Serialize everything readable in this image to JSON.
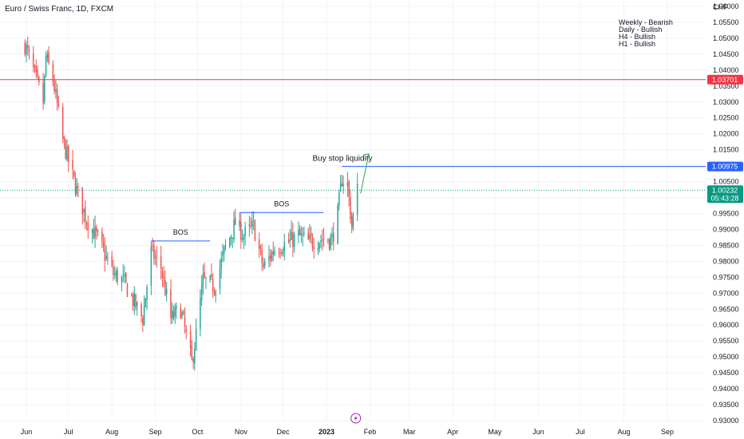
{
  "header": {
    "title": "Euro / Swiss Franc, 1D, FXCM",
    "currency": "CHF"
  },
  "notes": [
    "Weekly - Bearish",
    "Daily - Bullish",
    "H4 - Bullish",
    "H1 - Bullish"
  ],
  "colors": {
    "up": "#26a69a",
    "down": "#ef5350",
    "red_level": "#f23645",
    "blue_level": "#2962ff",
    "current": "#089981",
    "arrow": "#2fa84f",
    "grid": "#f0f3fa",
    "text": "#131722"
  },
  "chart_data": {
    "type": "candlestick",
    "symbol": "Euro / Swiss Franc",
    "timeframe": "1D",
    "exchange": "FXCM",
    "ylim": [
      0.93,
      1.06
    ],
    "y_ticks": [
      "1.06000",
      "1.05500",
      "1.05000",
      "1.04500",
      "1.04000",
      "1.03500",
      "1.03000",
      "1.02500",
      "1.02000",
      "1.01500",
      "1.01000",
      "1.00500",
      "1.00000",
      "0.99500",
      "0.99000",
      "0.98500",
      "0.98000",
      "0.97500",
      "0.97000",
      "0.96500",
      "0.96000",
      "0.95500",
      "0.95000",
      "0.94500",
      "0.94000",
      "0.93500",
      "0.93000"
    ],
    "x_ticks": [
      "Jun",
      "Jul",
      "Aug",
      "Sep",
      "Oct",
      "Nov",
      "Dec",
      "2023",
      "Feb",
      "Mar",
      "Apr",
      "May",
      "Jun",
      "Jul",
      "Aug",
      "Sep"
    ],
    "levels": [
      {
        "price": 1.03701,
        "label": "1.03701",
        "color": "red"
      },
      {
        "price": 1.00975,
        "label": "1.00975",
        "color": "blue"
      }
    ],
    "current_price": {
      "price": 1.00232,
      "label": "1.00232",
      "countdown": "05:43:28"
    },
    "bos_lines": [
      {
        "label": "BOS",
        "price": 0.9864,
        "from": "2022-08-29",
        "to": "2022-10-10"
      },
      {
        "label": "BOS",
        "price": 0.9953,
        "from": "2022-10-31",
        "to": "2022-12-30"
      }
    ],
    "annotations": [
      {
        "text": "Buy stop liquidity"
      }
    ],
    "anchors": [
      {
        "date": "2022-05-31",
        "price": 1.048
      },
      {
        "date": "2022-06-08",
        "price": 1.037
      },
      {
        "date": "2022-06-13",
        "price": 1.03
      },
      {
        "date": "2022-06-15",
        "price": 1.044
      },
      {
        "date": "2022-06-20",
        "price": 1.037
      },
      {
        "date": "2022-06-27",
        "price": 1.018
      },
      {
        "date": "2022-07-05",
        "price": 1.005
      },
      {
        "date": "2022-07-14",
        "price": 0.993
      },
      {
        "date": "2022-07-22",
        "price": 0.987
      },
      {
        "date": "2022-08-02",
        "price": 0.976
      },
      {
        "date": "2022-08-09",
        "price": 0.974
      },
      {
        "date": "2022-08-18",
        "price": 0.966
      },
      {
        "date": "2022-08-23",
        "price": 0.962
      },
      {
        "date": "2022-08-29",
        "price": 0.983
      },
      {
        "date": "2022-09-05",
        "price": 0.978
      },
      {
        "date": "2022-09-12",
        "price": 0.962
      },
      {
        "date": "2022-09-19",
        "price": 0.965
      },
      {
        "date": "2022-09-27",
        "price": 0.948
      },
      {
        "date": "2022-09-30",
        "price": 0.957
      },
      {
        "date": "2022-10-05",
        "price": 0.974
      },
      {
        "date": "2022-10-13",
        "price": 0.972
      },
      {
        "date": "2022-10-20",
        "price": 0.983
      },
      {
        "date": "2022-10-28",
        "price": 0.992
      },
      {
        "date": "2022-11-03",
        "price": 0.988
      },
      {
        "date": "2022-11-10",
        "price": 0.991
      },
      {
        "date": "2022-11-17",
        "price": 0.978
      },
      {
        "date": "2022-11-25",
        "price": 0.984
      },
      {
        "date": "2022-12-05",
        "price": 0.986
      },
      {
        "date": "2022-12-12",
        "price": 0.988
      },
      {
        "date": "2022-12-19",
        "price": 0.986
      },
      {
        "date": "2022-12-28",
        "price": 0.987
      },
      {
        "date": "2023-01-05",
        "price": 0.987
      },
      {
        "date": "2023-01-09",
        "price": 0.995
      },
      {
        "date": "2023-01-12",
        "price": 1.006
      },
      {
        "date": "2023-01-16",
        "price": 1.004
      },
      {
        "date": "2023-01-19",
        "price": 0.991
      },
      {
        "date": "2023-01-23",
        "price": 1.0023
      }
    ]
  }
}
